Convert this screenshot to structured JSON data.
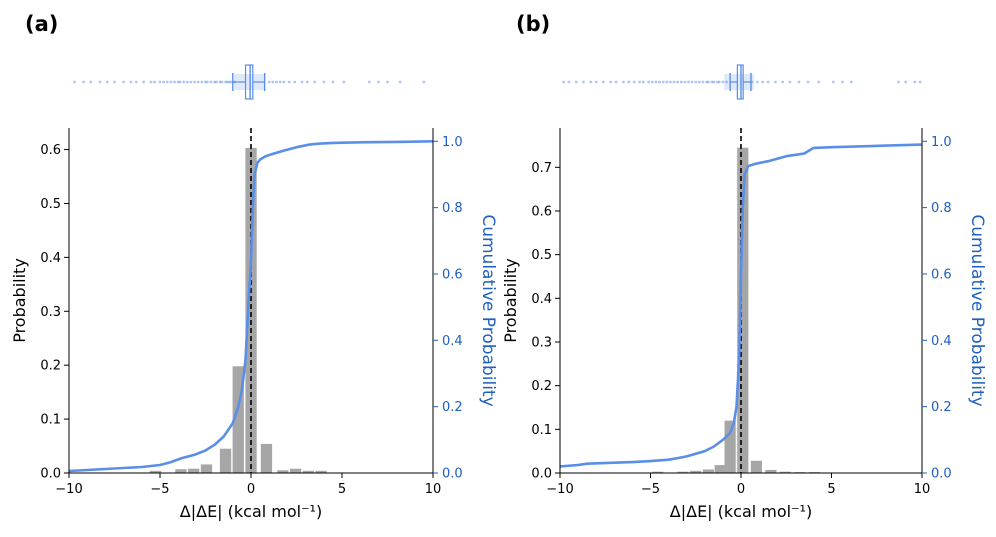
{
  "colors": {
    "bar": "#a6a6a6",
    "cumulative": "#5b8ee6",
    "cumulative_axis": "#1f5fbf",
    "zero_line": "#000000",
    "axis": "#000000"
  },
  "chart_data": [
    {
      "panel_label": "(a)",
      "type": "bar",
      "xlabel": "Δ|ΔE| (kcal mol⁻¹)",
      "ylabel": "Probability",
      "y2label": "Cumulative Probability",
      "xlim": [
        -10,
        10
      ],
      "ylim": [
        0,
        0.64
      ],
      "y2lim": [
        0,
        1.04
      ],
      "xticks": [
        -10,
        -5,
        0,
        5,
        10
      ],
      "xtick_labels": [
        "−10",
        "−5",
        "0",
        "5",
        "10"
      ],
      "yticks": [
        0.0,
        0.1,
        0.2,
        0.3,
        0.4,
        0.5,
        0.6
      ],
      "ytick_labels": [
        "0.0",
        "0.1",
        "0.2",
        "0.3",
        "0.4",
        "0.5",
        "0.6"
      ],
      "y2ticks": [
        0.0,
        0.2,
        0.4,
        0.6,
        0.8,
        1.0
      ],
      "y2tick_labels": [
        "0.0",
        "0.2",
        "0.4",
        "0.6",
        "0.8",
        "1.0"
      ],
      "bin_width": 0.7,
      "bins": [
        {
          "x": -5.25,
          "value": 0.004
        },
        {
          "x": -3.85,
          "value": 0.007
        },
        {
          "x": -3.15,
          "value": 0.008
        },
        {
          "x": -2.45,
          "value": 0.016
        },
        {
          "x": -1.4,
          "value": 0.045
        },
        {
          "x": -0.7,
          "value": 0.198
        },
        {
          "x": 0.0,
          "value": 0.603
        },
        {
          "x": 0.85,
          "value": 0.054
        },
        {
          "x": 1.75,
          "value": 0.005
        },
        {
          "x": 2.45,
          "value": 0.008
        },
        {
          "x": 3.15,
          "value": 0.004
        },
        {
          "x": 3.85,
          "value": 0.004
        }
      ],
      "cumulative": {
        "x": [
          -10,
          -8,
          -6,
          -5,
          -4.4,
          -3.8,
          -3.1,
          -2.5,
          -2.0,
          -1.5,
          -1.0,
          -0.7,
          -0.5,
          -0.3,
          -0.15,
          0.0,
          0.1,
          0.2,
          0.35,
          0.5,
          0.8,
          1.2,
          1.8,
          2.5,
          3.2,
          3.8,
          4.5,
          6.0,
          8.0,
          10.0
        ],
        "y": [
          0.006,
          0.012,
          0.018,
          0.024,
          0.033,
          0.045,
          0.055,
          0.068,
          0.085,
          0.11,
          0.15,
          0.2,
          0.25,
          0.34,
          0.5,
          0.64,
          0.8,
          0.9,
          0.935,
          0.945,
          0.955,
          0.962,
          0.972,
          0.982,
          0.99,
          0.993,
          0.995,
          0.997,
          0.998,
          1.0
        ]
      },
      "rug": [
        -9.7,
        -9.2,
        -8.8,
        -8.3,
        -7.9,
        -7.5,
        -7.0,
        -6.6,
        -6.3,
        -5.9,
        -5.5,
        -5.3,
        -5.0,
        -4.8,
        -4.6,
        -4.4,
        -4.2,
        -4.0,
        -3.9,
        -3.7,
        -3.5,
        -3.3,
        -3.1,
        -2.9,
        -2.7,
        -2.5,
        -2.4,
        -2.2,
        -2.0,
        -1.9,
        -1.7,
        -1.6,
        -1.4,
        -1.3,
        -1.2,
        -1.1,
        -0.9,
        1.0,
        1.2,
        1.4,
        1.6,
        1.8,
        2.1,
        2.4,
        2.8,
        3.1,
        3.5,
        4.0,
        4.5,
        5.1,
        6.5,
        7.0,
        7.5,
        8.2,
        9.5
      ],
      "box": {
        "whisker_low": -1.0,
        "q1": -0.3,
        "median": -0.05,
        "q3": 0.1,
        "whisker_high": 0.75
      }
    },
    {
      "panel_label": "(b)",
      "type": "bar",
      "xlabel": "Δ|ΔE| (kcal mol⁻¹)",
      "ylabel": "Probability",
      "y2label": "Cumulative Probability",
      "xlim": [
        -10,
        10
      ],
      "ylim": [
        0,
        0.79
      ],
      "y2lim": [
        0,
        1.04
      ],
      "xticks": [
        -10,
        -5,
        0,
        5,
        10
      ],
      "xtick_labels": [
        "−10",
        "−5",
        "0",
        "5",
        "10"
      ],
      "yticks": [
        0.0,
        0.1,
        0.2,
        0.3,
        0.4,
        0.5,
        0.6,
        0.7
      ],
      "ytick_labels": [
        "0.0",
        "0.1",
        "0.2",
        "0.3",
        "0.4",
        "0.5",
        "0.6",
        "0.7"
      ],
      "y2ticks": [
        0.0,
        0.2,
        0.4,
        0.6,
        0.8,
        1.0
      ],
      "y2tick_labels": [
        "0.0",
        "0.2",
        "0.4",
        "0.6",
        "0.8",
        "1.0"
      ],
      "bin_width": 0.7,
      "bins": [
        {
          "x": -4.6,
          "value": 0.003
        },
        {
          "x": -3.2,
          "value": 0.003
        },
        {
          "x": -2.5,
          "value": 0.005
        },
        {
          "x": -1.8,
          "value": 0.008
        },
        {
          "x": -1.15,
          "value": 0.018
        },
        {
          "x": -0.6,
          "value": 0.12
        },
        {
          "x": 0.1,
          "value": 0.745
        },
        {
          "x": 0.85,
          "value": 0.028
        },
        {
          "x": 1.65,
          "value": 0.007
        },
        {
          "x": 2.45,
          "value": 0.003
        },
        {
          "x": 3.25,
          "value": 0.002
        },
        {
          "x": 4.05,
          "value": 0.002
        }
      ],
      "cumulative": {
        "x": [
          -10,
          -9,
          -8.5,
          -7,
          -6,
          -5,
          -4,
          -3.5,
          -3.0,
          -2.5,
          -2.0,
          -1.5,
          -1.0,
          -0.6,
          -0.4,
          -0.25,
          -0.1,
          0.0,
          0.1,
          0.2,
          0.4,
          0.8,
          1.5,
          2.5,
          3.5,
          4.0,
          5.0,
          7.0,
          8.5,
          10.0
        ],
        "y": [
          0.02,
          0.024,
          0.028,
          0.031,
          0.033,
          0.036,
          0.04,
          0.045,
          0.05,
          0.058,
          0.066,
          0.08,
          0.1,
          0.12,
          0.15,
          0.2,
          0.35,
          0.6,
          0.8,
          0.9,
          0.925,
          0.932,
          0.94,
          0.955,
          0.963,
          0.98,
          0.982,
          0.985,
          0.988,
          0.99
        ]
      },
      "rug": [
        -9.8,
        -9.5,
        -9.1,
        -8.7,
        -8.3,
        -8.0,
        -7.6,
        -7.2,
        -6.9,
        -6.5,
        -6.2,
        -5.9,
        -5.6,
        -5.4,
        -5.1,
        -4.9,
        -4.7,
        -4.5,
        -4.3,
        -4.1,
        -3.9,
        -3.7,
        -3.5,
        -3.3,
        -3.1,
        -2.9,
        -2.7,
        -2.5,
        -2.3,
        -2.1,
        -1.9,
        -1.8,
        -1.6,
        -1.5,
        -1.3,
        -1.2,
        -1.0,
        -0.8,
        0.6,
        0.9,
        1.2,
        1.5,
        1.9,
        2.3,
        2.7,
        3.2,
        3.7,
        4.3,
        5.1,
        5.6,
        6.1,
        8.7,
        9.1,
        9.6,
        9.9
      ],
      "box": {
        "whisker_low": -0.6,
        "q1": -0.2,
        "median": 0.0,
        "q3": 0.12,
        "whisker_high": 0.55
      }
    }
  ]
}
